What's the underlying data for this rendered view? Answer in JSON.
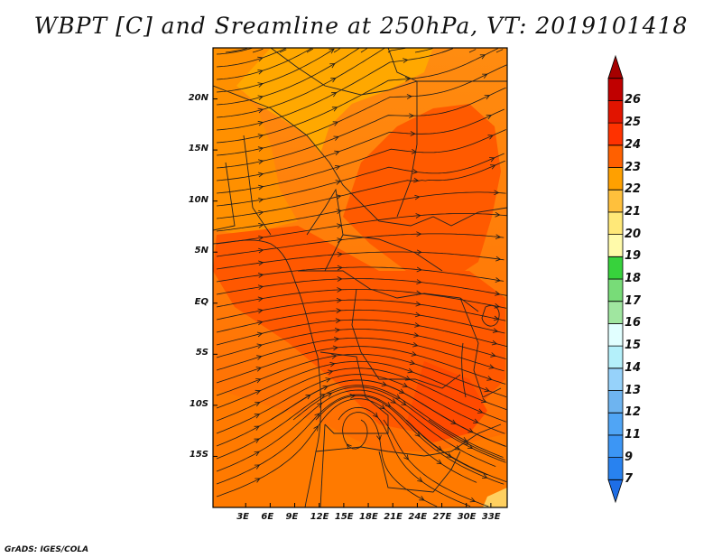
{
  "title": "WBPT [C] and Sreamline at 250hPa, VT: 2019101418",
  "footer": "GrADS: IGES/COLA",
  "map": {
    "lon_range": [
      -1,
      35
    ],
    "lat_range": [
      -20,
      25
    ],
    "lon_ticks": [
      {
        "value": 3,
        "label": "3E"
      },
      {
        "value": 6,
        "label": "6E"
      },
      {
        "value": 9,
        "label": "9E"
      },
      {
        "value": 12,
        "label": "12E"
      },
      {
        "value": 15,
        "label": "15E"
      },
      {
        "value": 18,
        "label": "18E"
      },
      {
        "value": 21,
        "label": "21E"
      },
      {
        "value": 24,
        "label": "24E"
      },
      {
        "value": 27,
        "label": "27E"
      },
      {
        "value": 30,
        "label": "30E"
      },
      {
        "value": 33,
        "label": "33E"
      }
    ],
    "lat_ticks": [
      {
        "value": 20,
        "label": "20N"
      },
      {
        "value": 15,
        "label": "15N"
      },
      {
        "value": 10,
        "label": "10N"
      },
      {
        "value": 5,
        "label": "5N"
      },
      {
        "value": 0,
        "label": "EQ"
      },
      {
        "value": -5,
        "label": "5S"
      },
      {
        "value": -10,
        "label": "10S"
      },
      {
        "value": -15,
        "label": "15S"
      }
    ]
  },
  "colorbar": {
    "levels": [
      "7",
      "9",
      "11",
      "12",
      "13",
      "14",
      "15",
      "16",
      "17",
      "18",
      "19",
      "20",
      "21",
      "22",
      "23",
      "24",
      "25",
      "26"
    ],
    "colors": [
      "#1e6ee6",
      "#2882f0",
      "#3c96f5",
      "#50a5f5",
      "#6eb4f0",
      "#96d2fa",
      "#b4f0fa",
      "#e1ffff",
      "#a0e6a0",
      "#78dc78",
      "#37d23c",
      "#fffaaa",
      "#ffe878",
      "#ffc03c",
      "#ffa000",
      "#ff6000",
      "#ff3200",
      "#e11400",
      "#c00000",
      "#a50000"
    ]
  }
}
